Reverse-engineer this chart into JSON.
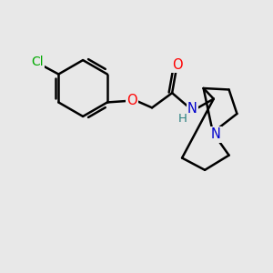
{
  "bg_color": "#e8e8e8",
  "bond_color": "#000000",
  "bond_width": 1.8,
  "cl_color": "#00aa00",
  "o_color": "#ff0000",
  "n_color": "#0000cc",
  "figsize": [
    3.0,
    3.0
  ],
  "dpi": 100,
  "xlim": [
    0,
    10
  ],
  "ylim": [
    0,
    10
  ]
}
